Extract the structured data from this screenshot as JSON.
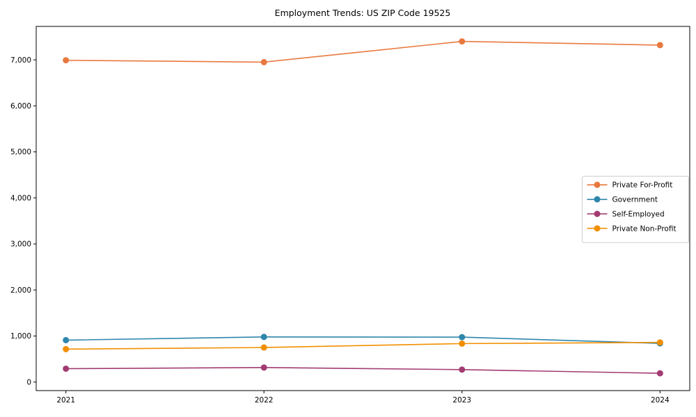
{
  "figure": {
    "background": "#ffffff",
    "axis_color": "#000000"
  },
  "chart_data": {
    "type": "line",
    "title": "Employment Trends: US ZIP Code 19525",
    "xlabel": "",
    "ylabel": "",
    "grid": false,
    "x": [
      2021,
      2022,
      2023,
      2024
    ],
    "x_tick_labels": [
      "2021",
      "2022",
      "2023",
      "2024"
    ],
    "y_ticks": [
      0,
      1000,
      2000,
      3000,
      4000,
      5000,
      6000,
      7000
    ],
    "y_tick_labels": [
      "0",
      "1,000",
      "2,000",
      "3,000",
      "4,000",
      "5,000",
      "6,000",
      "7,000"
    ],
    "xlim": [
      2020.85,
      2024.15
    ],
    "ylim": [
      -186,
      7726
    ],
    "series": [
      {
        "name": "Private For-Profit",
        "color": "#E8793E",
        "values": [
          6990,
          6950,
          7400,
          7320
        ]
      },
      {
        "name": "Government",
        "color": "#2E86AB",
        "values": [
          910,
          980,
          975,
          840
        ]
      },
      {
        "name": "Self-Employed",
        "color": "#A23B72",
        "values": [
          290,
          315,
          270,
          190
        ]
      },
      {
        "name": "Private Non-Profit",
        "color": "#F18F01",
        "values": [
          715,
          750,
          835,
          860
        ]
      }
    ],
    "legend": {
      "position": "center-right",
      "border_color": "#cccccc",
      "labels": [
        "Private For-Profit",
        "Government",
        "Self-Employed",
        "Private Non-Profit"
      ]
    },
    "marker": "circle"
  }
}
